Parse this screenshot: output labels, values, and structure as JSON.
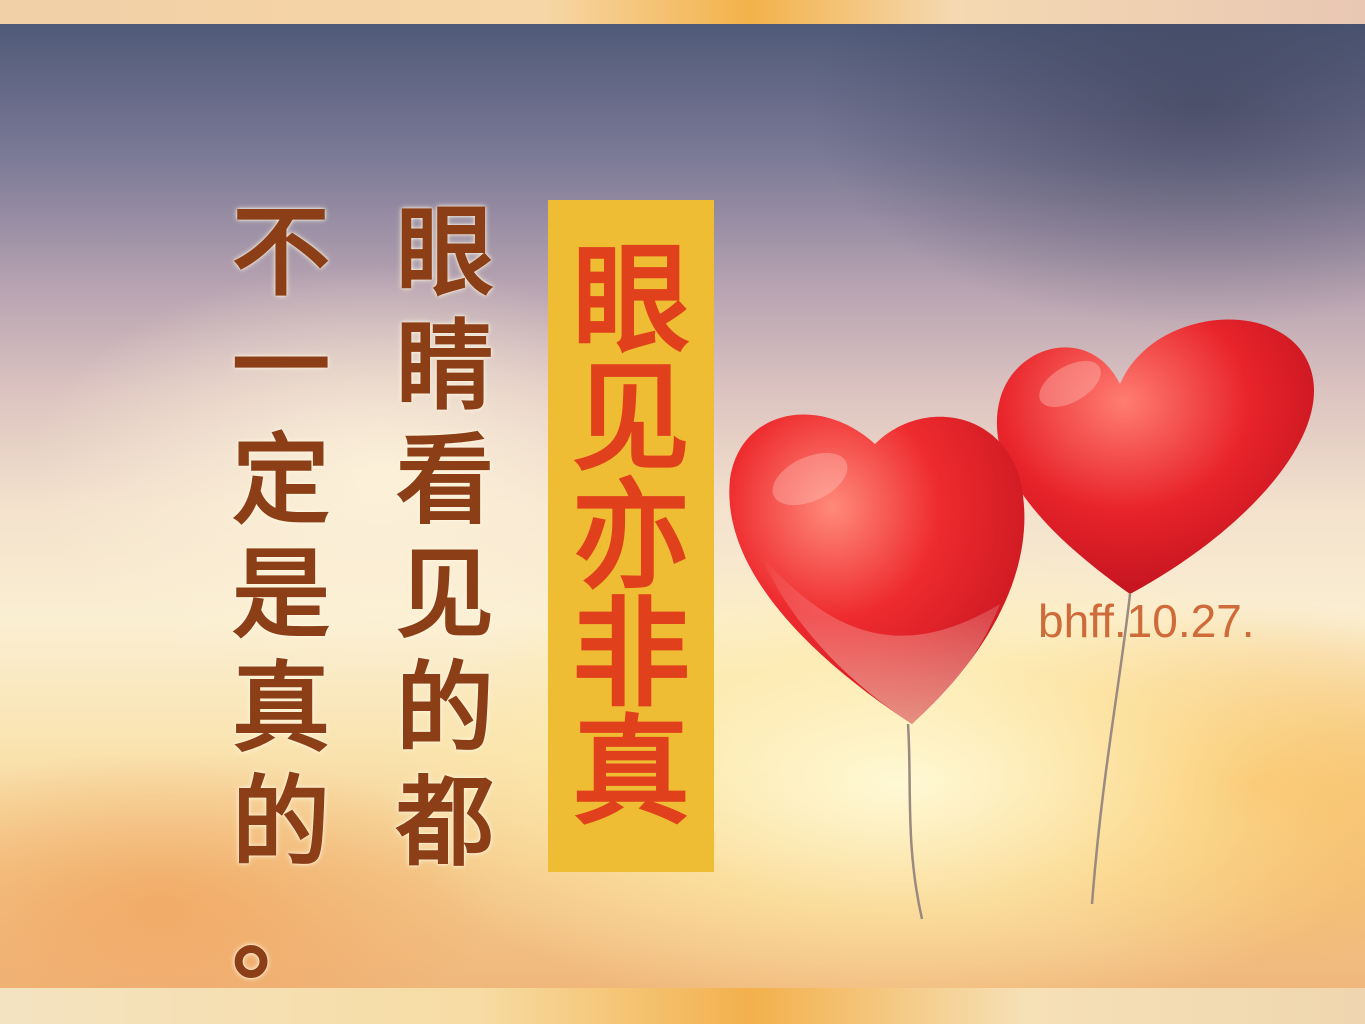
{
  "poster": {
    "banner_chars": [
      "眼",
      "见",
      "亦",
      "非",
      "真"
    ],
    "middle_column_chars": [
      "眼",
      "睛",
      "看",
      "见",
      "的",
      "都"
    ],
    "left_column_chars": [
      "不",
      "一",
      "定",
      "是",
      "真",
      "的",
      "。"
    ],
    "watermark": "bhff.10.27."
  },
  "colors": {
    "banner_background": "#eebd33",
    "banner_text": "#e0401b",
    "column_text": "#8c3f16",
    "balloon_red": "#e8232a",
    "watermark": "#cf6a3a"
  },
  "illustration": {
    "subject": "two-heart-balloons-icon"
  }
}
